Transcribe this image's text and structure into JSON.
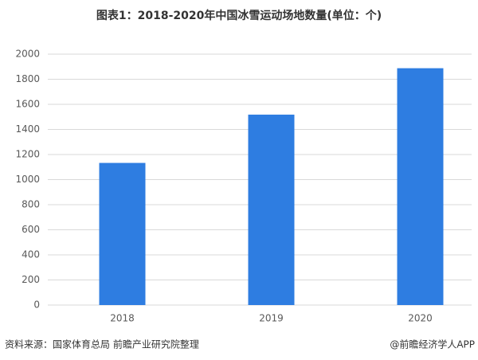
{
  "chart_data": {
    "type": "bar",
    "title": "图表1：2018-2020年中国冰雪运动场地数量(单位：个)",
    "categories": [
      "2018",
      "2019",
      "2020"
    ],
    "values": [
      1133,
      1518,
      1888
    ],
    "color": "#2e7de1",
    "ylim": [
      0,
      2000
    ],
    "yticks": [
      0,
      200,
      400,
      600,
      800,
      1000,
      1200,
      1400,
      1600,
      1800,
      2000
    ],
    "grid": true,
    "source": "资料来源：国家体育总局 前瞻产业研究院整理",
    "credit": "@前瞻经济学人APP"
  }
}
